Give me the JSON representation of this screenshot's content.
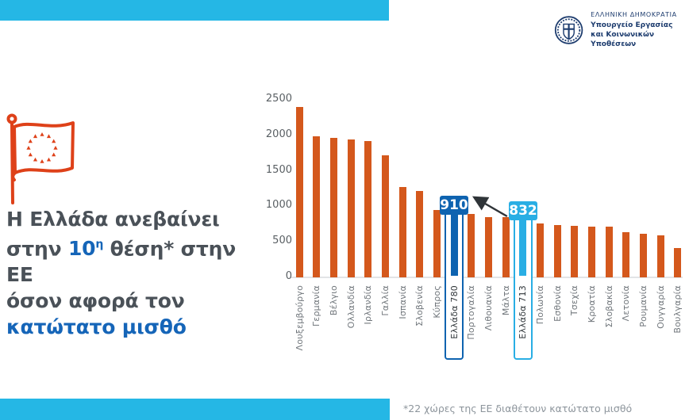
{
  "logo": {
    "line1": "ΕΛΛΗΝΙΚΗ ΔΗΜΟΚΡΑΤΙΑ",
    "line2": "Υπουργείο Εργασίας",
    "line3": "και Κοινωνικών Υποθέσεων"
  },
  "headline": {
    "line1": "Η Ελλάδα ανεβαίνει",
    "line2_pre": "στην ",
    "line2_rank": "10",
    "line2_rank_sup": "η",
    "line2_post": " θέση* στην ΕΕ",
    "line3": "όσον αφορά τον",
    "line4": "κατώτατο μισθό"
  },
  "footnote": "*22 χώρες της ΕΕ διαθέτουν κατώτατο μισθό",
  "colors": {
    "cyan": "#25B7E5",
    "orange": "#D4581C",
    "flag-orange": "#DE4119",
    "blue-dark": "#0E63B0",
    "blue-light": "#29AEE4",
    "title-text": "#4A5158",
    "accent-blue": "#1565B8",
    "navy": "#1D3C6E",
    "axis-text": "#595F63",
    "label-text": "#70767B",
    "footnote-text": "#8D959C",
    "axis-line": "#E2E4E6",
    "arrow": "#2F3438"
  },
  "chart_data": {
    "type": "bar",
    "title": "",
    "xlabel": "",
    "ylabel": "",
    "ylim": [
      0,
      2500
    ],
    "yticks": [
      0,
      500,
      1000,
      1500,
      2000,
      2500
    ],
    "grid": false,
    "legend": false,
    "bars": [
      {
        "label": "Λουξεμβούργο",
        "value": 2387
      },
      {
        "label": "Γερμανία",
        "value": 1981
      },
      {
        "label": "Βέλγιο",
        "value": 1955
      },
      {
        "label": "Ολλανδία",
        "value": 1934
      },
      {
        "label": "Ιρλανδία",
        "value": 1910
      },
      {
        "label": "Γαλλία",
        "value": 1709
      },
      {
        "label": "Ισπανία",
        "value": 1260
      },
      {
        "label": "Σλοβενία",
        "value": 1203
      },
      {
        "label": "Κύπρος",
        "value": 940
      },
      {
        "label": "Ελλάδα 780",
        "value": 910,
        "highlight": "new",
        "badge": "910"
      },
      {
        "label": "Πορτογαλία",
        "value": 887
      },
      {
        "label": "Λιθουανία",
        "value": 840
      },
      {
        "label": "Μάλτα",
        "value": 835
      },
      {
        "label": "Ελλάδα 713",
        "value": 832,
        "highlight": "old",
        "badge": "832"
      },
      {
        "label": "Πολωνία",
        "value": 746
      },
      {
        "label": "Εσθονία",
        "value": 725
      },
      {
        "label": "Τσεχία",
        "value": 717
      },
      {
        "label": "Κροατία",
        "value": 700
      },
      {
        "label": "Σλοβακία",
        "value": 700
      },
      {
        "label": "Λετονία",
        "value": 620
      },
      {
        "label": "Ρουμανία",
        "value": 606
      },
      {
        "label": "Ουγγαρία",
        "value": 579
      },
      {
        "label": "Βουλγαρία",
        "value": 399
      }
    ],
    "annotation": {
      "arrow_from_badge": "832",
      "arrow_to_badge": "910",
      "meaning": "rise of Greek minimum wage from 832 to 910 (12-payment equivalent)"
    }
  }
}
